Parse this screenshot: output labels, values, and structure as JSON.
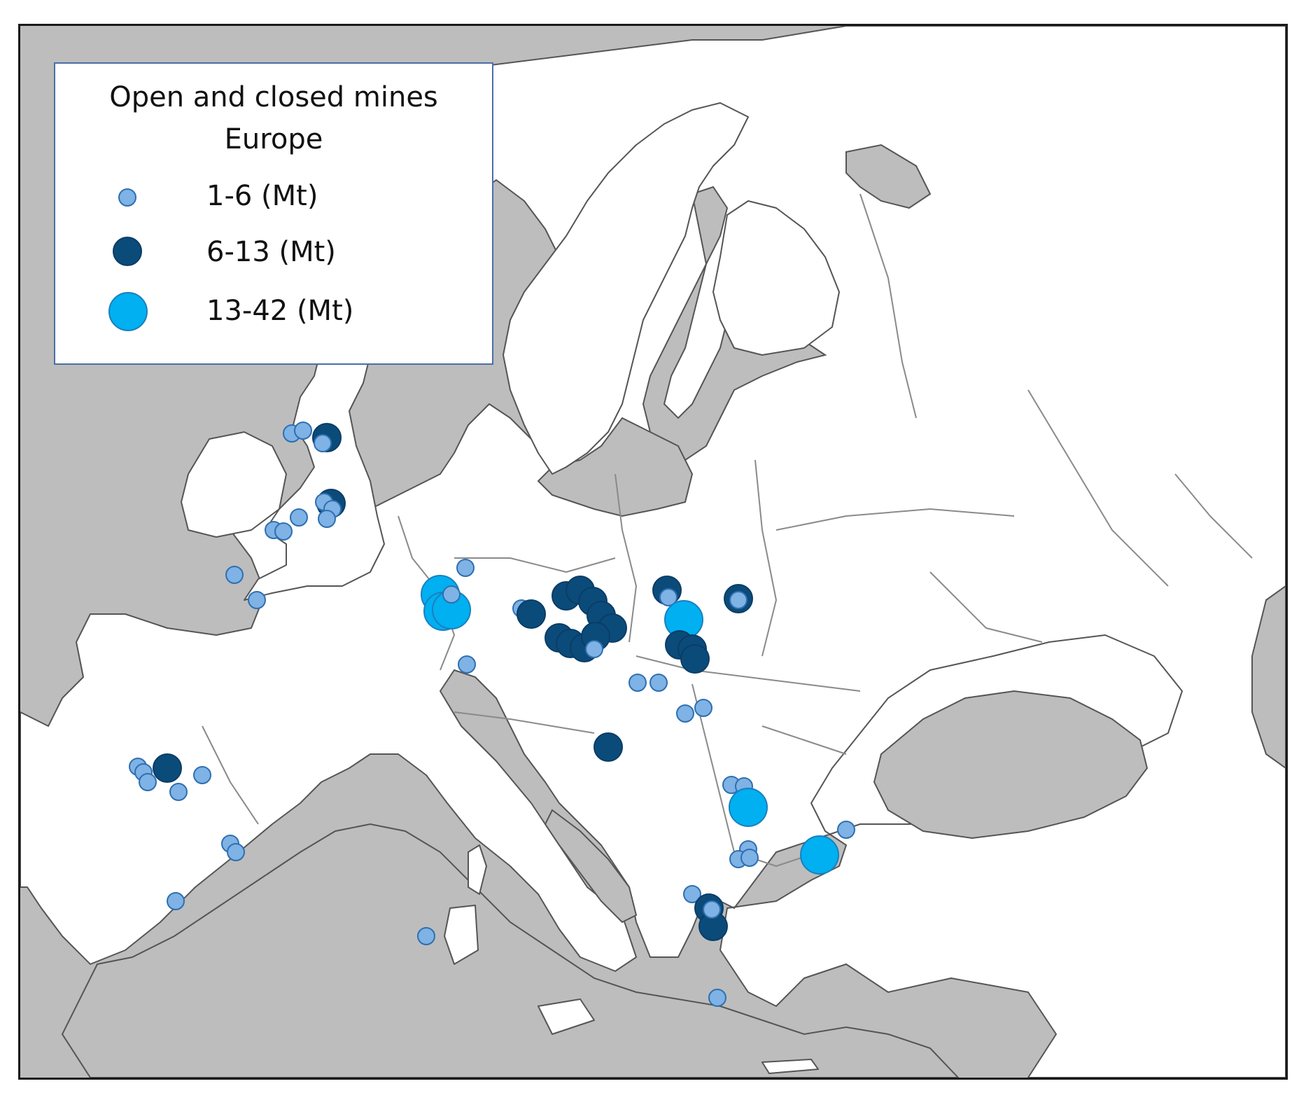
{
  "legend": {
    "title_line1": "Open and closed mines",
    "title_line2": "Europe",
    "items": [
      {
        "label": "1-6 (Mt)",
        "fill": "#7fb2e5",
        "stroke": "#2f6fb0"
      },
      {
        "label": "6-13 (Mt)",
        "fill": "#0b4b7a",
        "stroke": "#0a3d66"
      },
      {
        "label": "13-42 (Mt)",
        "fill": "#00b0f0",
        "stroke": "#1b7fbf"
      }
    ]
  },
  "colors": {
    "sea": "#bdbdbd",
    "land": "#ffffff",
    "border": "#8a8a8a",
    "frame": "#1a1a1a"
  }
}
